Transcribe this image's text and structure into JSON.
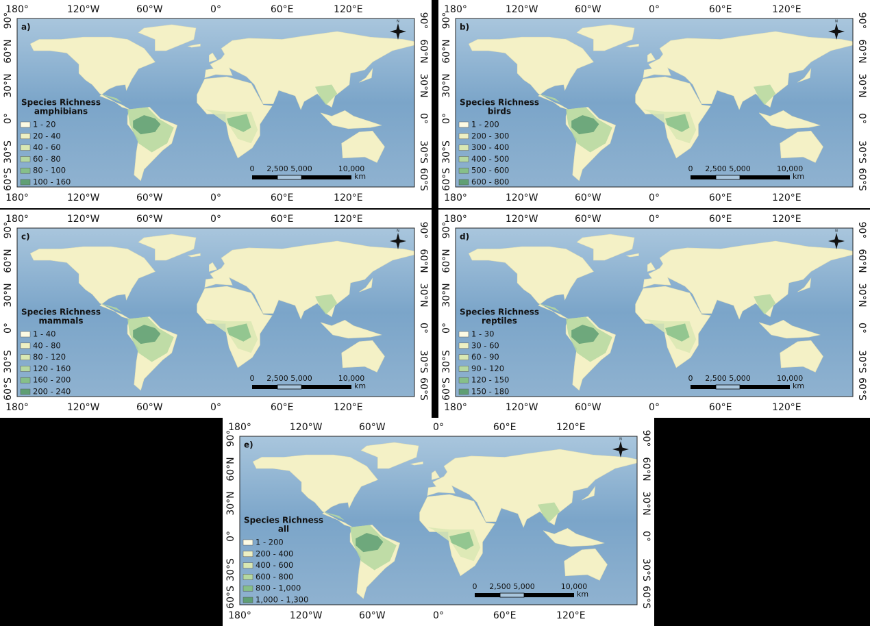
{
  "lon_labels": [
    "180°",
    "120°W",
    "60°W",
    "0°",
    "60°E",
    "120°E"
  ],
  "lat_labels": [
    "90°",
    "60°N",
    "30°N",
    "0°",
    "30°S",
    "60°S"
  ],
  "scale_bar": {
    "labels": [
      "0",
      "2,500",
      "5,000",
      "10,000"
    ],
    "unit": "km"
  },
  "north_label": "N",
  "legend_colors": [
    "#fdfbe4",
    "#eef0c3",
    "#d9e8b3",
    "#b5d8a0",
    "#86bf89",
    "#5f9f74"
  ],
  "panels": [
    {
      "label": "a)",
      "legend_title": "Species Richness",
      "legend_subtitle": "amphibians",
      "legend_items": [
        "1 - 20",
        "20 - 40",
        "40 - 60",
        "60 - 80",
        "80 - 100",
        "100 - 160"
      ]
    },
    {
      "label": "b)",
      "legend_title": "Species Richness",
      "legend_subtitle": "birds",
      "legend_items": [
        "1 - 200",
        "200 - 300",
        "300 - 400",
        "400 - 500",
        "500 - 600",
        "600 - 800"
      ]
    },
    {
      "label": "c)",
      "legend_title": "Species Richness",
      "legend_subtitle": "mammals",
      "legend_items": [
        "1 - 40",
        "40 - 80",
        "80 - 120",
        "120 - 160",
        "160 - 200",
        "200 - 240"
      ]
    },
    {
      "label": "d)",
      "legend_title": "Species Richness",
      "legend_subtitle": "reptiles",
      "legend_items": [
        "1 - 30",
        "30 - 60",
        "60 - 90",
        "90 - 120",
        "120 - 150",
        "150 - 180"
      ]
    },
    {
      "label": "e)",
      "legend_title": "Species Richness",
      "legend_subtitle": "all",
      "legend_items": [
        "1 - 200",
        "200 - 400",
        "400 - 600",
        "600 - 800",
        "800 - 1,000",
        "1,000 - 1,300"
      ]
    }
  ]
}
